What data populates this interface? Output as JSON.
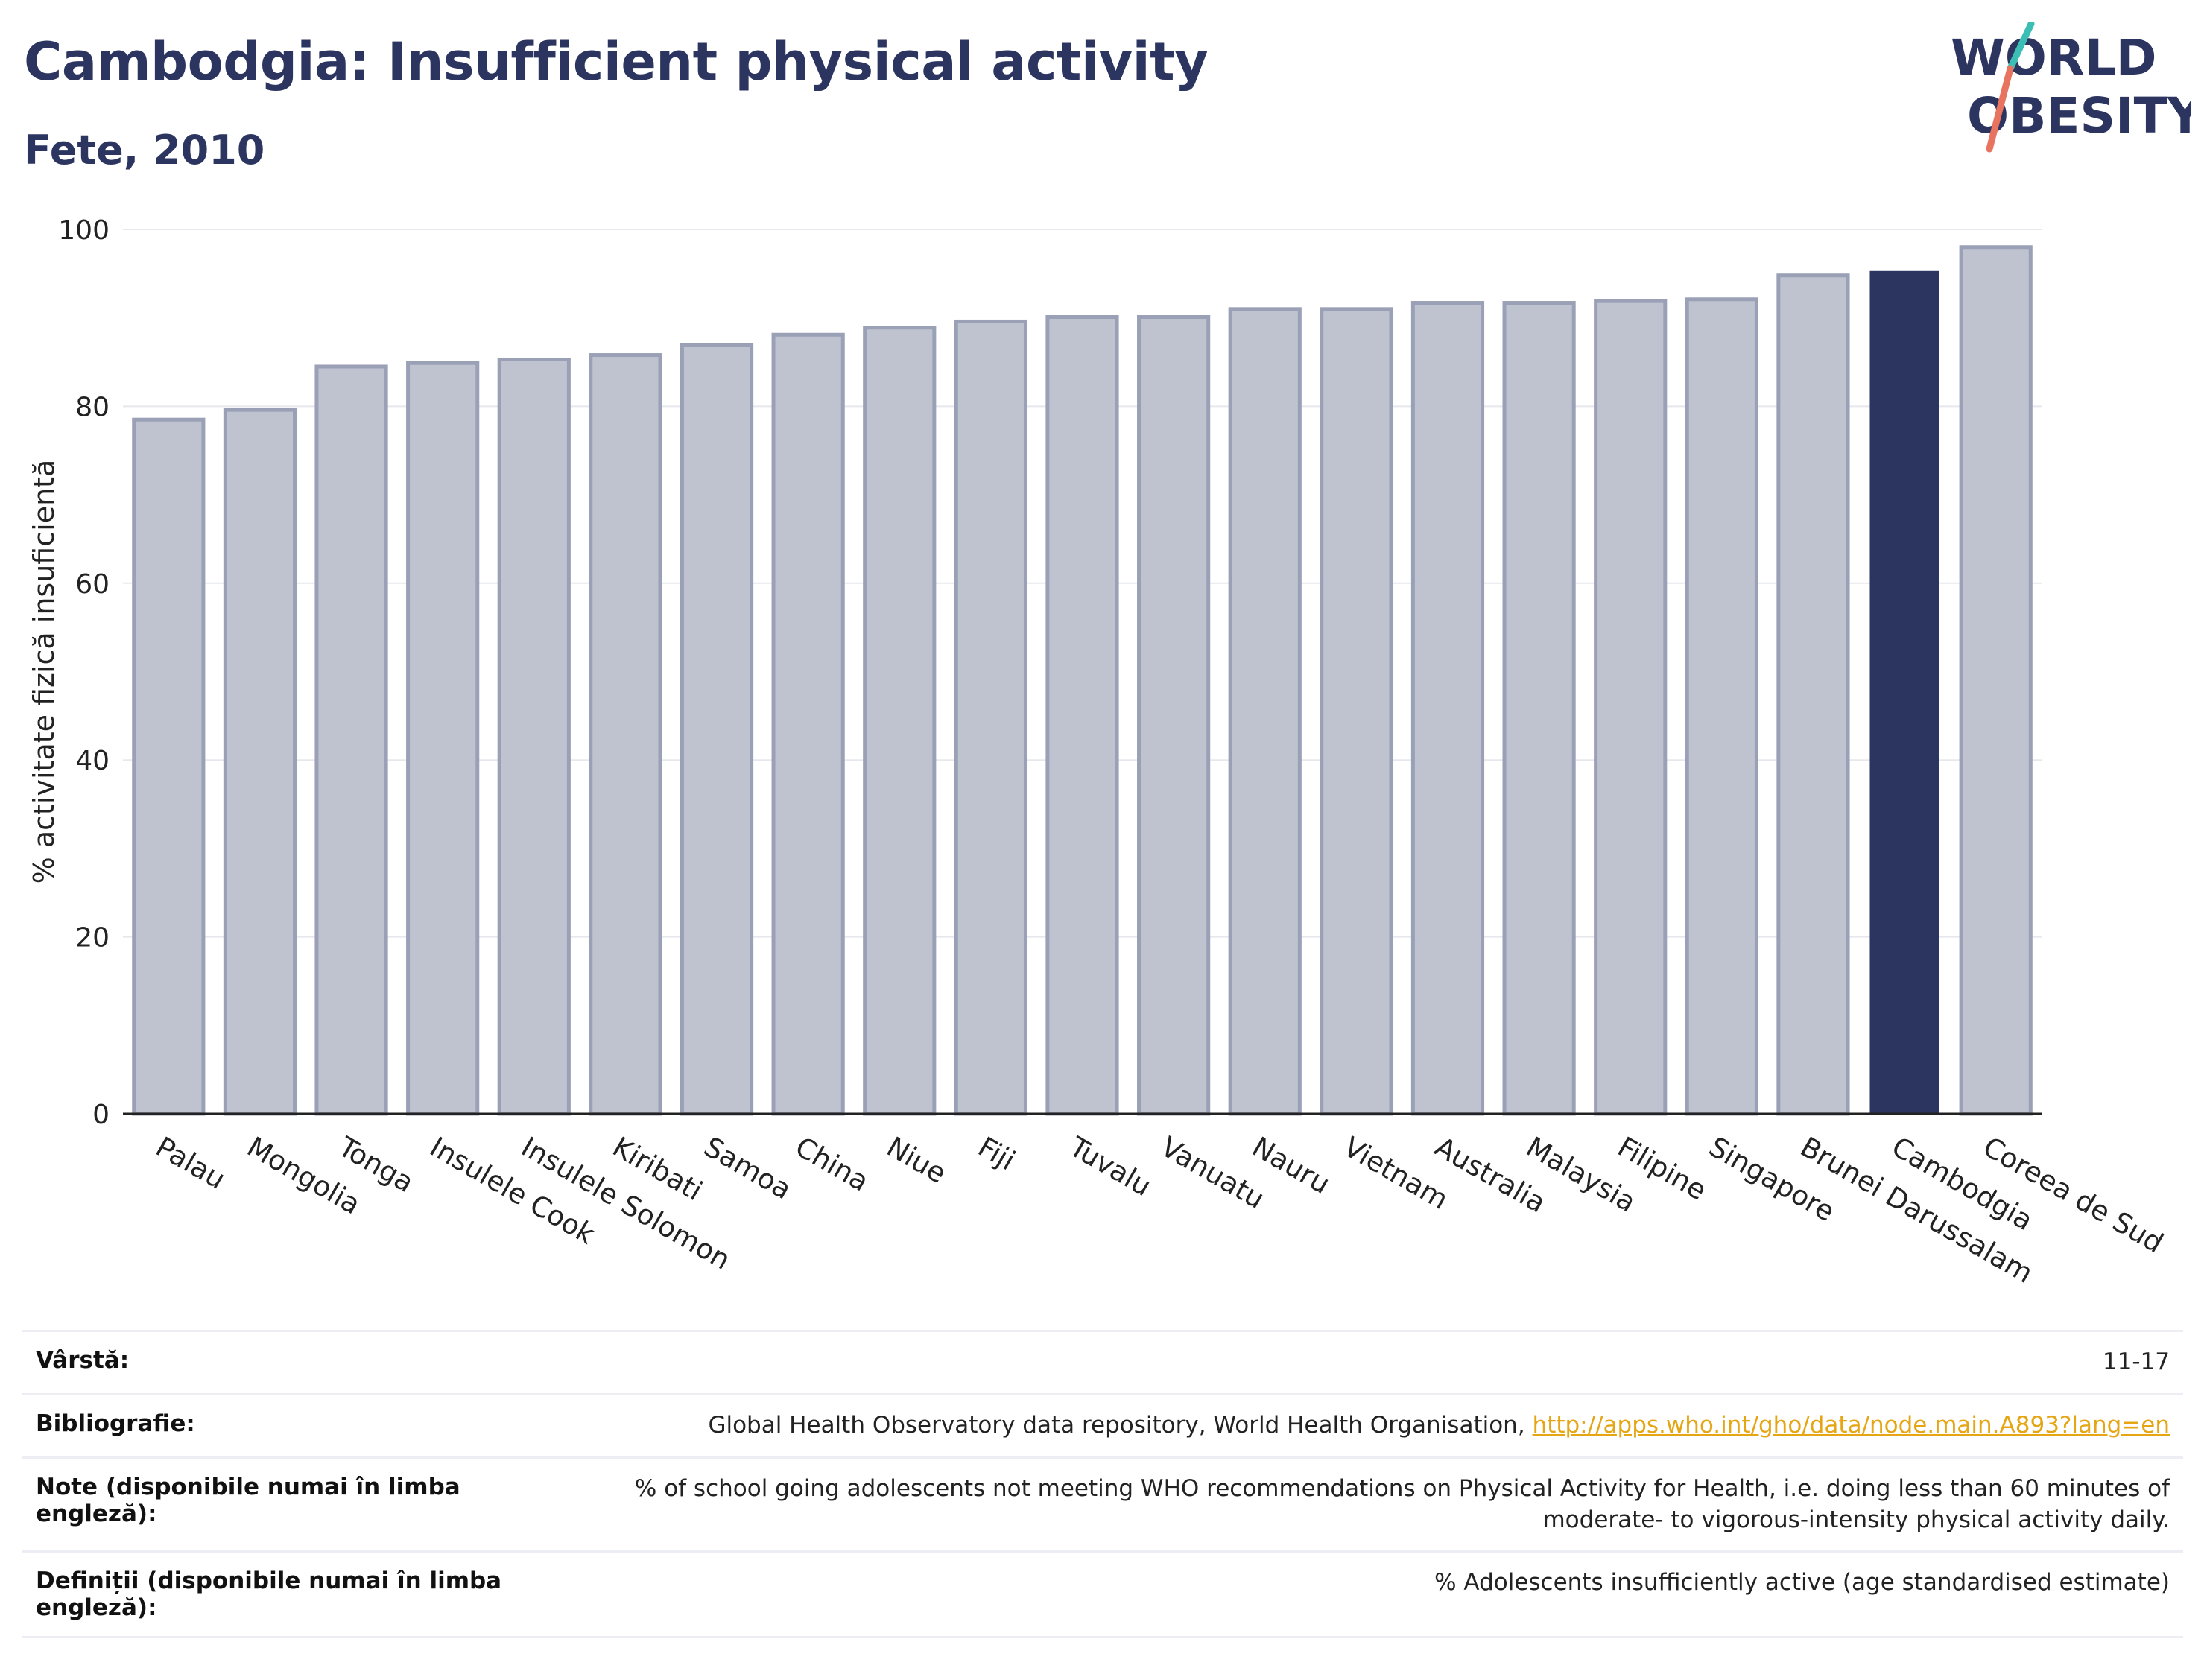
{
  "header": {
    "title": "Cambodgia: Insufficient physical activity",
    "subtitle": "Fete, 2010",
    "logo_line1": "WORLD",
    "logo_line2": "OBESITY"
  },
  "colors": {
    "title": "#2b3560",
    "bar_default": "#bfc3d0",
    "bar_default_stroke": "#9aa0b6",
    "bar_highlight": "#2b3560",
    "logo_teal": "#3bbfb5",
    "logo_coral": "#e8735f"
  },
  "chart_data": {
    "type": "bar",
    "title": "Cambodgia: Insufficient physical activity",
    "subtitle": "Fete, 2010",
    "ylabel": "% activitate fizică insuficientă",
    "xlabel": "",
    "ylim": [
      0,
      100
    ],
    "yticks": [
      0,
      20,
      40,
      60,
      80,
      100
    ],
    "grid": true,
    "highlight": "Cambodgia",
    "categories": [
      "Palau",
      "Mongolia",
      "Tonga",
      "Insulele Cook",
      "Insulele Solomon",
      "Kiribati",
      "Samoa",
      "China",
      "Niue",
      "Fiji",
      "Tuvalu",
      "Vanuatu",
      "Nauru",
      "Vietnam",
      "Australia",
      "Malaysia",
      "Filipine",
      "Singapore",
      "Brunei Darussalam",
      "Cambodgia",
      "Coreea de Sud"
    ],
    "values": [
      78.5,
      79.6,
      84.5,
      84.9,
      85.3,
      85.8,
      86.9,
      88.1,
      88.9,
      89.6,
      90.1,
      90.1,
      91.0,
      91.0,
      91.7,
      91.7,
      91.9,
      92.1,
      94.8,
      95.3,
      98.0
    ]
  },
  "meta": {
    "age_label": "Vârstă:",
    "age_value": "11-17",
    "bib_label": "Bibliografie:",
    "bib_text": "Global Health Observatory data repository, World Health Organisation, ",
    "bib_link": "http://apps.who.int/gho/data/node.main.A893?lang=en",
    "notes_label": "Note (disponibile numai în limba engleză):",
    "notes_value": "% of school going adolescents not meeting WHO recommendations on Physical Activity for Health, i.e. doing less than 60 minutes of moderate- to vigorous-intensity physical activity daily.",
    "def_label": "Definiții (disponibile numai în limba engleză):",
    "def_value": "% Adolescents insufficiently active (age standardised estimate)"
  }
}
